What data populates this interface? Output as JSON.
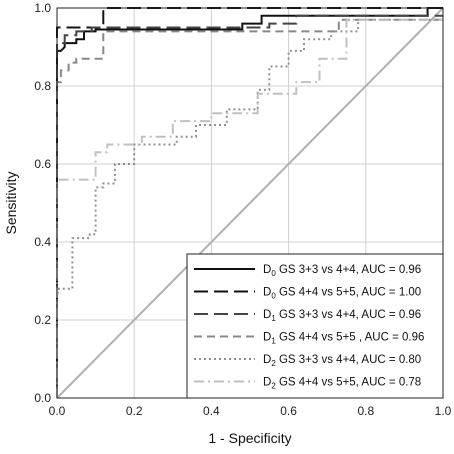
{
  "chart_data": {
    "type": "line",
    "title": "",
    "xlabel": "1 - Specificity",
    "ylabel": "Sensitivity",
    "xlim": [
      0,
      1
    ],
    "ylim": [
      0,
      1
    ],
    "xticks": [
      "0.0",
      "0.2",
      "0.4",
      "0.6",
      "0.8",
      "1.0"
    ],
    "yticks": [
      "0.0",
      "0.2",
      "0.4",
      "0.6",
      "0.8",
      "1.0"
    ],
    "grid": true,
    "legend_position": "bottom-right",
    "reference_line": {
      "from": [
        0,
        0
      ],
      "to": [
        1,
        1
      ],
      "color": "#b0b0b0"
    },
    "series": [
      {
        "label": {
          "sym": "D",
          "sub": "0",
          "text": " GS 3+3 vs 4+4, AUC = 0.96"
        },
        "color": "#111111",
        "dash": "solid",
        "x": [
          0,
          0,
          0.01,
          0.02,
          0.02,
          0.05,
          0.05,
          0.07,
          0.07,
          0.1,
          0.1,
          0.48,
          0.48,
          0.53,
          0.53,
          0.96,
          0.96,
          1
        ],
        "y": [
          0,
          0.89,
          0.89,
          0.9,
          0.91,
          0.91,
          0.92,
          0.92,
          0.94,
          0.94,
          0.945,
          0.945,
          0.96,
          0.96,
          0.98,
          0.98,
          1,
          1
        ]
      },
      {
        "label": {
          "sym": "D",
          "sub": "0",
          "text": " GS 4+4 vs 5+5, AUC = 1.00"
        },
        "color": "#111111",
        "dash": "long",
        "x": [
          0,
          0,
          0.12,
          0.12,
          1
        ],
        "y": [
          0,
          0.95,
          0.95,
          1,
          1
        ]
      },
      {
        "label": {
          "sym": "D",
          "sub": "1",
          "text": " GS 3+3 vs 4+4, AUC = 0.96"
        },
        "color": "#444444",
        "dash": "long",
        "x": [
          0,
          0,
          0.02,
          0.02,
          0.05,
          0.05,
          0.09,
          0.09,
          0.55,
          0.55,
          0.62,
          0.62,
          1
        ],
        "y": [
          0,
          0.91,
          0.91,
          0.93,
          0.93,
          0.94,
          0.94,
          0.95,
          0.95,
          0.96,
          0.96,
          0.98,
          0.98
        ]
      },
      {
        "label": {
          "sym": "D",
          "sub": "1",
          "text": " GS 4+4 vs 5+5 , AUC = 0.96"
        },
        "color": "#888888",
        "dash": "dash",
        "x": [
          0,
          0,
          0.01,
          0.01,
          0.03,
          0.03,
          0.05,
          0.05,
          0.09,
          0.12,
          0.12,
          0.73,
          0.73,
          1
        ],
        "y": [
          0,
          0.81,
          0.81,
          0.84,
          0.84,
          0.86,
          0.86,
          0.87,
          0.87,
          0.87,
          0.94,
          0.94,
          0.97,
          0.97
        ]
      },
      {
        "label": {
          "sym": "D",
          "sub": "2",
          "text": " GS 3+3 vs 4+4, AUC = 0.80"
        },
        "color": "#909090",
        "dash": "dot",
        "x": [
          0,
          0,
          0.005,
          0.005,
          0.04,
          0.04,
          0.085,
          0.085,
          0.1,
          0.1,
          0.12,
          0.12,
          0.15,
          0.15,
          0.2,
          0.2,
          0.31,
          0.31,
          0.36,
          0.36,
          0.44,
          0.44,
          0.52,
          0.52,
          0.55,
          0.55,
          0.6,
          0.6,
          0.64,
          0.64,
          0.71,
          0.71,
          0.78,
          0.78,
          1
        ],
        "y": [
          0,
          0.27,
          0.27,
          0.28,
          0.28,
          0.41,
          0.41,
          0.42,
          0.42,
          0.54,
          0.54,
          0.55,
          0.55,
          0.6,
          0.6,
          0.65,
          0.65,
          0.67,
          0.67,
          0.7,
          0.7,
          0.74,
          0.74,
          0.79,
          0.79,
          0.85,
          0.85,
          0.89,
          0.89,
          0.92,
          0.92,
          0.94,
          0.94,
          0.97,
          0.97
        ]
      },
      {
        "label": {
          "sym": "D",
          "sub": "2",
          "text": " GS 4+4 vs 5+5, AUC = 0.78"
        },
        "color": "#c0c0c0",
        "dash": "dashdot",
        "x": [
          0,
          0,
          0.1,
          0.1,
          0.13,
          0.13,
          0.22,
          0.22,
          0.3,
          0.3,
          0.4,
          0.4,
          0.52,
          0.52,
          0.62,
          0.62,
          0.68,
          0.68,
          0.75,
          0.75,
          1
        ],
        "y": [
          0,
          0.56,
          0.56,
          0.63,
          0.63,
          0.65,
          0.65,
          0.67,
          0.67,
          0.71,
          0.71,
          0.73,
          0.73,
          0.78,
          0.78,
          0.81,
          0.81,
          0.87,
          0.87,
          0.97,
          0.97
        ]
      }
    ]
  }
}
